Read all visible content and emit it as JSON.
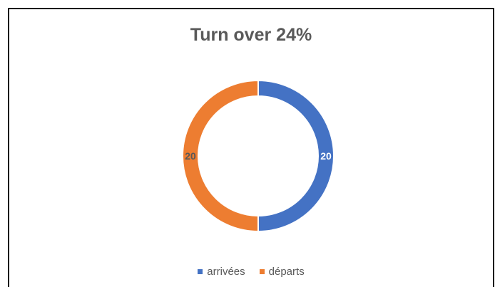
{
  "chart_data": {
    "type": "pie",
    "donut": true,
    "title": "Turn over 24%",
    "categories": [
      "arrivées",
      "départs"
    ],
    "values": [
      20,
      20
    ],
    "colors": [
      "#4472C4",
      "#ED7D31"
    ],
    "label_colors": [
      "#ffffff",
      "#595959"
    ],
    "legend_position": "bottom",
    "start_angle_deg": 0
  }
}
